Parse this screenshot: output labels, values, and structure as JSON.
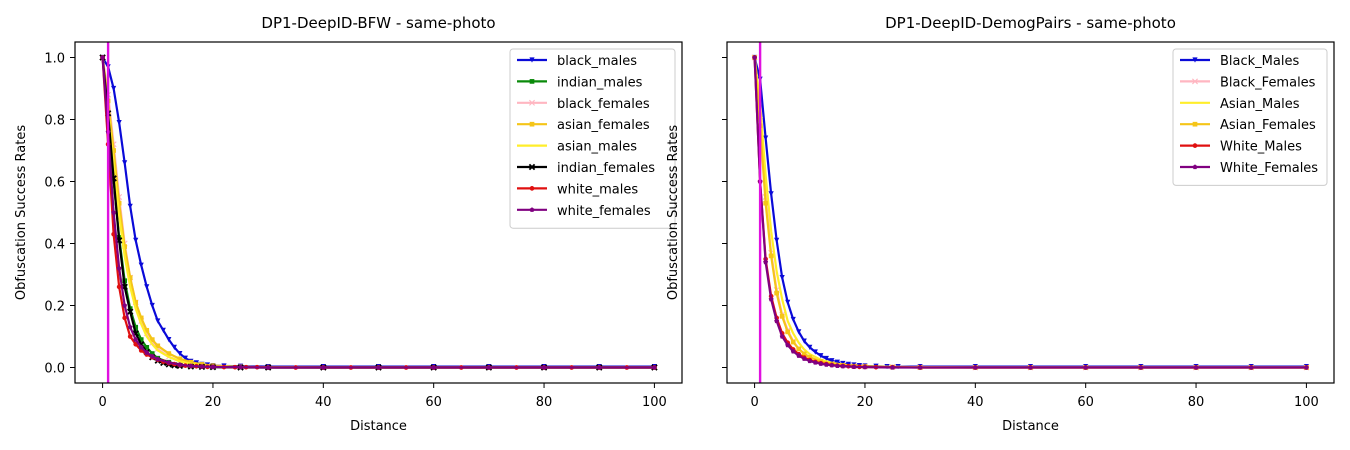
{
  "chart_data": [
    {
      "type": "line",
      "title": "DP1-DeepID-BFW - same-photo",
      "xlabel": "Distance",
      "ylabel": "Obfuscation Success Rates",
      "xlim": [
        -5,
        105
      ],
      "ylim": [
        -0.05,
        1.05
      ],
      "xticks": [
        0,
        20,
        40,
        60,
        80,
        100
      ],
      "xtick_labels": [
        "0",
        "20",
        "40",
        "60",
        "80",
        "100"
      ],
      "yticks": [
        0.0,
        0.2,
        0.4,
        0.6,
        0.8,
        1.0
      ],
      "ytick_labels": [
        "0.0",
        "0.2",
        "0.4",
        "0.6",
        "0.8",
        "1.0"
      ],
      "grid": false,
      "legend_position": "upper right",
      "vline": {
        "x": 1,
        "color": "#e010e0"
      },
      "series": [
        {
          "name": "black_males",
          "color": "#0a0ad8",
          "marker": "v",
          "x": [
            0,
            1,
            2,
            3,
            4,
            5,
            6,
            7,
            8,
            9,
            10,
            11,
            12,
            13,
            14,
            15,
            16,
            17,
            18,
            19,
            20,
            22,
            25,
            30,
            40,
            50,
            60,
            70,
            80,
            90,
            100
          ],
          "y": [
            1.0,
            0.97,
            0.9,
            0.79,
            0.66,
            0.52,
            0.41,
            0.33,
            0.26,
            0.2,
            0.15,
            0.12,
            0.09,
            0.065,
            0.045,
            0.03,
            0.02,
            0.015,
            0.01,
            0.008,
            0.006,
            0.005,
            0.004,
            0.003,
            0.003,
            0.003,
            0.003,
            0.003,
            0.003,
            0.003,
            0.003
          ]
        },
        {
          "name": "indian_males",
          "color": "#0a8a0a",
          "marker": "s",
          "x": [
            0,
            1,
            2,
            3,
            4,
            5,
            6,
            7,
            8,
            9,
            10,
            12,
            14,
            16,
            18,
            20,
            25,
            30,
            40,
            50,
            60,
            70,
            80,
            90,
            100
          ],
          "y": [
            1.0,
            0.8,
            0.6,
            0.42,
            0.28,
            0.19,
            0.13,
            0.09,
            0.065,
            0.045,
            0.03,
            0.017,
            0.009,
            0.005,
            0.003,
            0.002,
            0.001,
            0.0,
            0.0,
            0.0,
            0.0,
            0.0,
            0.0,
            0.0,
            0.0
          ]
        },
        {
          "name": "black_females",
          "color": "#ffb6c1",
          "marker": "x",
          "x": [
            0,
            1,
            2,
            3,
            4,
            5,
            6,
            7,
            8,
            9,
            10,
            12,
            14,
            16,
            18,
            20,
            25,
            30,
            40,
            50,
            60,
            70,
            80,
            90,
            100
          ],
          "y": [
            1.0,
            0.88,
            0.72,
            0.55,
            0.4,
            0.29,
            0.21,
            0.15,
            0.11,
            0.08,
            0.06,
            0.035,
            0.02,
            0.012,
            0.007,
            0.004,
            0.002,
            0.001,
            0.0,
            0.0,
            0.0,
            0.0,
            0.0,
            0.0,
            0.0
          ]
        },
        {
          "name": "asian_females",
          "color": "#f5c518",
          "marker": "s",
          "x": [
            0,
            1,
            2,
            3,
            4,
            5,
            6,
            7,
            8,
            9,
            10,
            12,
            14,
            16,
            18,
            20,
            25,
            30,
            40,
            50,
            60,
            70,
            80,
            90,
            100
          ],
          "y": [
            1.0,
            0.86,
            0.7,
            0.53,
            0.39,
            0.29,
            0.21,
            0.16,
            0.12,
            0.09,
            0.07,
            0.045,
            0.028,
            0.017,
            0.01,
            0.006,
            0.002,
            0.001,
            0.0,
            0.0,
            0.0,
            0.0,
            0.0,
            0.0,
            0.0
          ]
        },
        {
          "name": "asian_males",
          "color": "#ffee2a",
          "marker": "",
          "x": [
            0,
            1,
            2,
            3,
            4,
            5,
            6,
            7,
            8,
            9,
            10,
            12,
            14,
            16,
            18,
            20,
            25,
            30,
            40,
            50,
            60,
            70,
            80,
            90,
            100
          ],
          "y": [
            1.0,
            0.83,
            0.66,
            0.49,
            0.36,
            0.26,
            0.19,
            0.14,
            0.1,
            0.075,
            0.055,
            0.034,
            0.02,
            0.012,
            0.007,
            0.004,
            0.002,
            0.001,
            0.0,
            0.0,
            0.0,
            0.0,
            0.0,
            0.0,
            0.0
          ]
        },
        {
          "name": "indian_females",
          "color": "#000000",
          "marker": "X",
          "x": [
            0,
            1,
            2,
            3,
            4,
            5,
            6,
            7,
            8,
            9,
            10,
            11,
            12,
            13,
            14,
            16,
            18,
            20,
            25,
            30,
            40,
            50,
            60,
            70,
            80,
            90,
            100
          ],
          "y": [
            1.0,
            0.82,
            0.61,
            0.41,
            0.26,
            0.18,
            0.11,
            0.075,
            0.05,
            0.033,
            0.022,
            0.015,
            0.01,
            0.007,
            0.005,
            0.003,
            0.002,
            0.001,
            0.0,
            0.0,
            0.0,
            0.0,
            0.0,
            0.0,
            0.0,
            0.0,
            0.0
          ]
        },
        {
          "name": "white_males",
          "color": "#e01010",
          "marker": "o",
          "x": [
            0,
            1,
            2,
            3,
            4,
            5,
            6,
            7,
            8,
            9,
            10,
            11,
            12,
            13,
            14,
            15,
            16,
            17,
            18,
            19,
            20,
            22,
            24,
            26,
            28,
            30,
            35,
            40,
            45,
            50,
            55,
            60,
            65,
            70,
            75,
            80,
            85,
            90,
            95,
            100
          ],
          "y": [
            1.0,
            0.72,
            0.43,
            0.26,
            0.16,
            0.1,
            0.075,
            0.055,
            0.042,
            0.033,
            0.025,
            0.019,
            0.014,
            0.011,
            0.008,
            0.006,
            0.005,
            0.004,
            0.003,
            0.002,
            0.002,
            0.0015,
            0.001,
            0.001,
            0.001,
            0.0,
            0.0,
            0.0,
            0.0,
            0.0,
            0.0,
            0.0,
            0.0,
            0.0,
            0.0,
            0.0,
            0.0,
            0.0,
            0.0,
            0.0
          ]
        },
        {
          "name": "white_females",
          "color": "#800080",
          "marker": "p",
          "x": [
            0,
            1,
            2,
            3,
            4,
            5,
            6,
            7,
            8,
            9,
            10,
            12,
            14,
            16,
            18,
            20,
            25,
            30,
            40,
            50,
            60,
            70,
            80,
            90,
            100
          ],
          "y": [
            1.0,
            0.76,
            0.5,
            0.32,
            0.2,
            0.13,
            0.09,
            0.065,
            0.048,
            0.036,
            0.027,
            0.016,
            0.009,
            0.005,
            0.003,
            0.002,
            0.001,
            0.0,
            0.0,
            0.0,
            0.0,
            0.0,
            0.0,
            0.0,
            0.0
          ]
        }
      ]
    },
    {
      "type": "line",
      "title": "DP1-DeepID-DemogPairs - same-photo",
      "xlabel": "Distance",
      "ylabel": "Obfuscation Success Rates",
      "xlim": [
        -5,
        105
      ],
      "ylim": [
        -0.05,
        1.05
      ],
      "xticks": [
        0,
        20,
        40,
        60,
        80,
        100
      ],
      "xtick_labels": [
        "0",
        "20",
        "40",
        "60",
        "80",
        "100"
      ],
      "yticks": [
        0.0,
        0.2,
        0.4,
        0.6,
        0.8,
        1.0
      ],
      "ytick_labels": [
        "",
        "",
        "",
        "",
        "",
        ""
      ],
      "grid": false,
      "legend_position": "upper right",
      "vline": {
        "x": 1,
        "color": "#e010e0"
      },
      "series": [
        {
          "name": "Black_Males",
          "color": "#0a0ad8",
          "marker": "v",
          "x": [
            0,
            1,
            2,
            3,
            4,
            5,
            6,
            7,
            8,
            9,
            10,
            11,
            12,
            13,
            14,
            15,
            16,
            17,
            18,
            19,
            20,
            22,
            24,
            26,
            30,
            40,
            50,
            60,
            70,
            80,
            90,
            100
          ],
          "y": [
            1.0,
            0.93,
            0.74,
            0.56,
            0.41,
            0.29,
            0.21,
            0.155,
            0.115,
            0.085,
            0.065,
            0.05,
            0.038,
            0.029,
            0.022,
            0.017,
            0.013,
            0.01,
            0.008,
            0.006,
            0.005,
            0.004,
            0.003,
            0.003,
            0.003,
            0.003,
            0.003,
            0.003,
            0.003,
            0.003,
            0.003,
            0.003
          ]
        },
        {
          "name": "Black_Females",
          "color": "#ffb6c1",
          "marker": "x",
          "x": [
            0,
            1,
            2,
            3,
            4,
            5,
            6,
            7,
            8,
            9,
            10,
            12,
            14,
            16,
            18,
            20,
            25,
            30,
            40,
            50,
            60,
            70,
            80,
            90,
            100
          ],
          "y": [
            1.0,
            0.8,
            0.55,
            0.37,
            0.25,
            0.17,
            0.12,
            0.085,
            0.06,
            0.045,
            0.033,
            0.02,
            0.012,
            0.008,
            0.005,
            0.003,
            0.002,
            0.001,
            0.0,
            0.0,
            0.0,
            0.0,
            0.0,
            0.0,
            0.0
          ]
        },
        {
          "name": "Asian_Males",
          "color": "#ffee2a",
          "marker": "",
          "x": [
            0,
            1,
            2,
            3,
            4,
            5,
            6,
            7,
            8,
            9,
            10,
            12,
            14,
            16,
            18,
            20,
            25,
            30,
            40,
            50,
            60,
            70,
            80,
            90,
            100
          ],
          "y": [
            1.0,
            0.85,
            0.62,
            0.44,
            0.31,
            0.22,
            0.15,
            0.11,
            0.08,
            0.058,
            0.043,
            0.025,
            0.015,
            0.009,
            0.006,
            0.004,
            0.002,
            0.001,
            0.0,
            0.0,
            0.0,
            0.0,
            0.0,
            0.0,
            0.0
          ]
        },
        {
          "name": "Asian_Females",
          "color": "#f5c518",
          "marker": "s",
          "x": [
            0,
            1,
            2,
            3,
            4,
            5,
            6,
            7,
            8,
            9,
            10,
            12,
            14,
            16,
            18,
            20,
            25,
            30,
            40,
            50,
            60,
            70,
            80,
            90,
            100
          ],
          "y": [
            1.0,
            0.78,
            0.53,
            0.36,
            0.24,
            0.165,
            0.115,
            0.082,
            0.06,
            0.044,
            0.033,
            0.019,
            0.011,
            0.007,
            0.004,
            0.003,
            0.001,
            0.0,
            0.0,
            0.0,
            0.0,
            0.0,
            0.0,
            0.0,
            0.0
          ]
        },
        {
          "name": "White_Males",
          "color": "#e01010",
          "marker": "o",
          "x": [
            0,
            1,
            2,
            3,
            4,
            5,
            6,
            7,
            8,
            9,
            10,
            11,
            12,
            13,
            14,
            15,
            16,
            17,
            18,
            19,
            20,
            22,
            25,
            30,
            40,
            50,
            60,
            70,
            80,
            90,
            100
          ],
          "y": [
            1.0,
            0.6,
            0.35,
            0.23,
            0.16,
            0.11,
            0.08,
            0.058,
            0.043,
            0.032,
            0.024,
            0.018,
            0.014,
            0.011,
            0.008,
            0.006,
            0.005,
            0.004,
            0.003,
            0.002,
            0.002,
            0.001,
            0.001,
            0.0,
            0.0,
            0.0,
            0.0,
            0.0,
            0.0,
            0.0,
            0.0
          ]
        },
        {
          "name": "White_Females",
          "color": "#800080",
          "marker": "p",
          "x": [
            0,
            1,
            2,
            3,
            4,
            5,
            6,
            7,
            8,
            9,
            10,
            11,
            12,
            13,
            14,
            15,
            16,
            18,
            20,
            25,
            30,
            40,
            50,
            60,
            70,
            80,
            90,
            100
          ],
          "y": [
            1.0,
            0.6,
            0.34,
            0.22,
            0.15,
            0.1,
            0.072,
            0.052,
            0.038,
            0.028,
            0.021,
            0.016,
            0.012,
            0.009,
            0.007,
            0.005,
            0.004,
            0.002,
            0.001,
            0.0,
            0.0,
            0.0,
            0.0,
            0.0,
            0.0,
            0.0,
            0.0,
            0.0
          ]
        }
      ]
    }
  ]
}
